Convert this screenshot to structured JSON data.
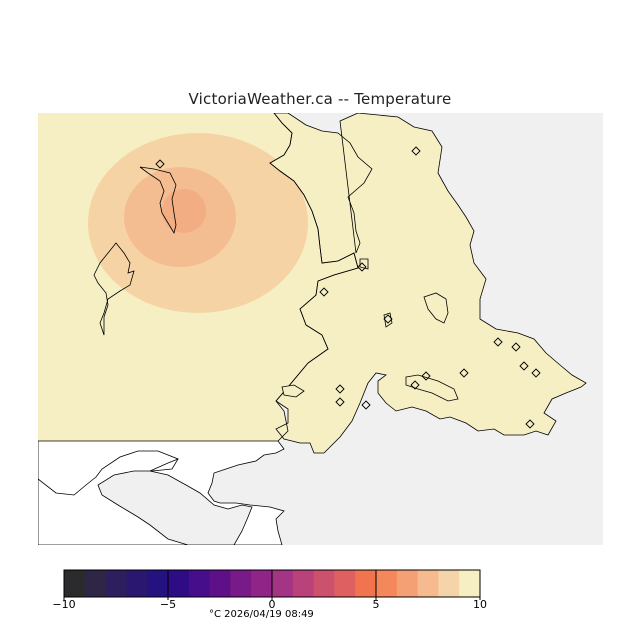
{
  "title": "VictoriaWeather.ca -- Temperature",
  "colors": {
    "sea": "#f0f0f0",
    "land_base": "#f6efc3",
    "warm_outer": "#f6d3a4",
    "warm_mid": "#f4bd91",
    "warm_inner": "#f2ad83",
    "coastline": "#000000"
  },
  "station_marker": "diamond",
  "colorbar": {
    "colors": [
      "#2b2a2c",
      "#2f2646",
      "#2d1f5e",
      "#2a1870",
      "#241280",
      "#2e0c86",
      "#460e8b",
      "#5e1089",
      "#781a88",
      "#912587",
      "#a33584",
      "#b9427b",
      "#cc516d",
      "#df6060",
      "#f2744f",
      "#f4885c",
      "#f49f74",
      "#f6ba91",
      "#f6d4aa",
      "#f6efc3"
    ],
    "min": -10,
    "max": 10,
    "ticks": [
      "−10",
      "−5",
      "0",
      "5",
      "10"
    ]
  },
  "footer": "°C  2026/04/19 08:49"
}
